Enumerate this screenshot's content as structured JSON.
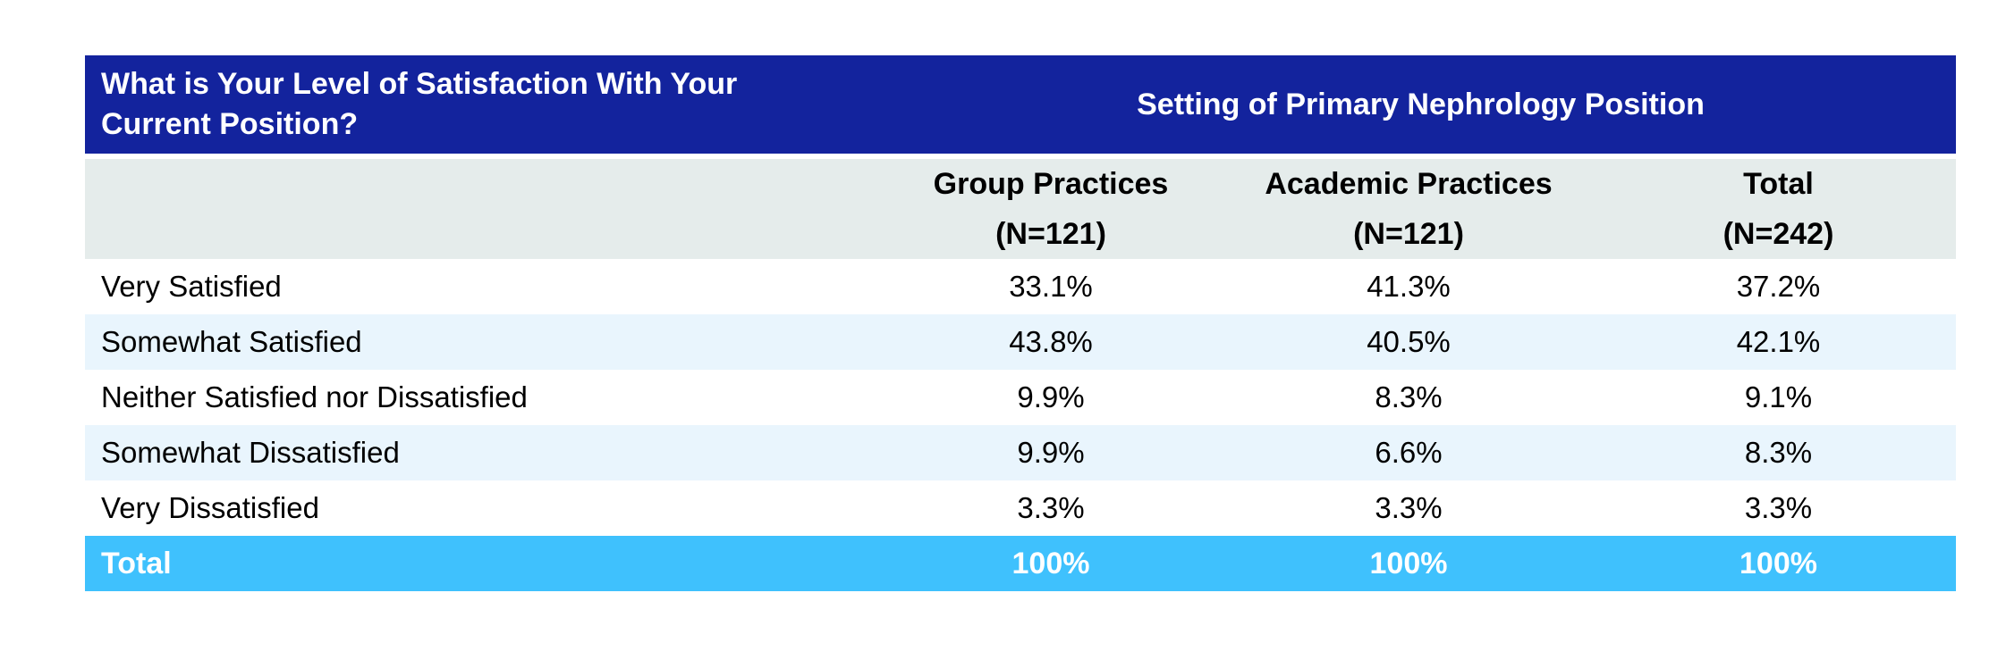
{
  "table": {
    "header": {
      "question": "What is Your Level of Satisfaction With Your Current Position?",
      "setting_group": "Setting of Primary Nephrology Position"
    },
    "columns": [
      {
        "label": "Group Practices",
        "sub": "(N=121)"
      },
      {
        "label": "Academic Practices",
        "sub": "(N=121)"
      },
      {
        "label": "Total",
        "sub": "(N=242)"
      }
    ],
    "rows": [
      {
        "label": "Very Satisfied",
        "values": [
          "33.1%",
          "41.3%",
          "37.2%"
        ]
      },
      {
        "label": "Somewhat Satisfied",
        "values": [
          "43.8%",
          "40.5%",
          "42.1%"
        ]
      },
      {
        "label": "Neither Satisfied nor Dissatisfied",
        "values": [
          "9.9%",
          "8.3%",
          "9.1%"
        ]
      },
      {
        "label": "Somewhat Dissatisfied",
        "values": [
          "9.9%",
          "6.6%",
          "8.3%"
        ]
      },
      {
        "label": "Very Dissatisfied",
        "values": [
          "3.3%",
          "3.3%",
          "3.3%"
        ]
      }
    ],
    "total_row": {
      "label": "Total",
      "values": [
        "100%",
        "100%",
        "100%"
      ]
    }
  },
  "colors": {
    "header_blue": "#13239d",
    "subheader_gray": "#e5eceb",
    "alt_row_blue": "#e9f5fd",
    "total_row_cyan": "#3fc1fd",
    "header_text": "#ffffff",
    "body_text": "#000000"
  },
  "chart_data": {
    "type": "table",
    "title": "What is Your Level of Satisfaction With Your Current Position?",
    "group_header": "Setting of Primary Nephrology Position",
    "columns": [
      "Group Practices (N=121)",
      "Academic Practices (N=121)",
      "Total (N=242)"
    ],
    "rows": [
      {
        "label": "Very Satisfied",
        "values_pct": [
          33.1,
          41.3,
          37.2
        ]
      },
      {
        "label": "Somewhat Satisfied",
        "values_pct": [
          43.8,
          40.5,
          42.1
        ]
      },
      {
        "label": "Neither Satisfied nor Dissatisfied",
        "values_pct": [
          9.9,
          8.3,
          9.1
        ]
      },
      {
        "label": "Somewhat Dissatisfied",
        "values_pct": [
          9.9,
          6.6,
          8.3
        ]
      },
      {
        "label": "Very Dissatisfied",
        "values_pct": [
          3.3,
          3.3,
          3.3
        ]
      },
      {
        "label": "Total",
        "values_pct": [
          100,
          100,
          100
        ]
      }
    ]
  }
}
